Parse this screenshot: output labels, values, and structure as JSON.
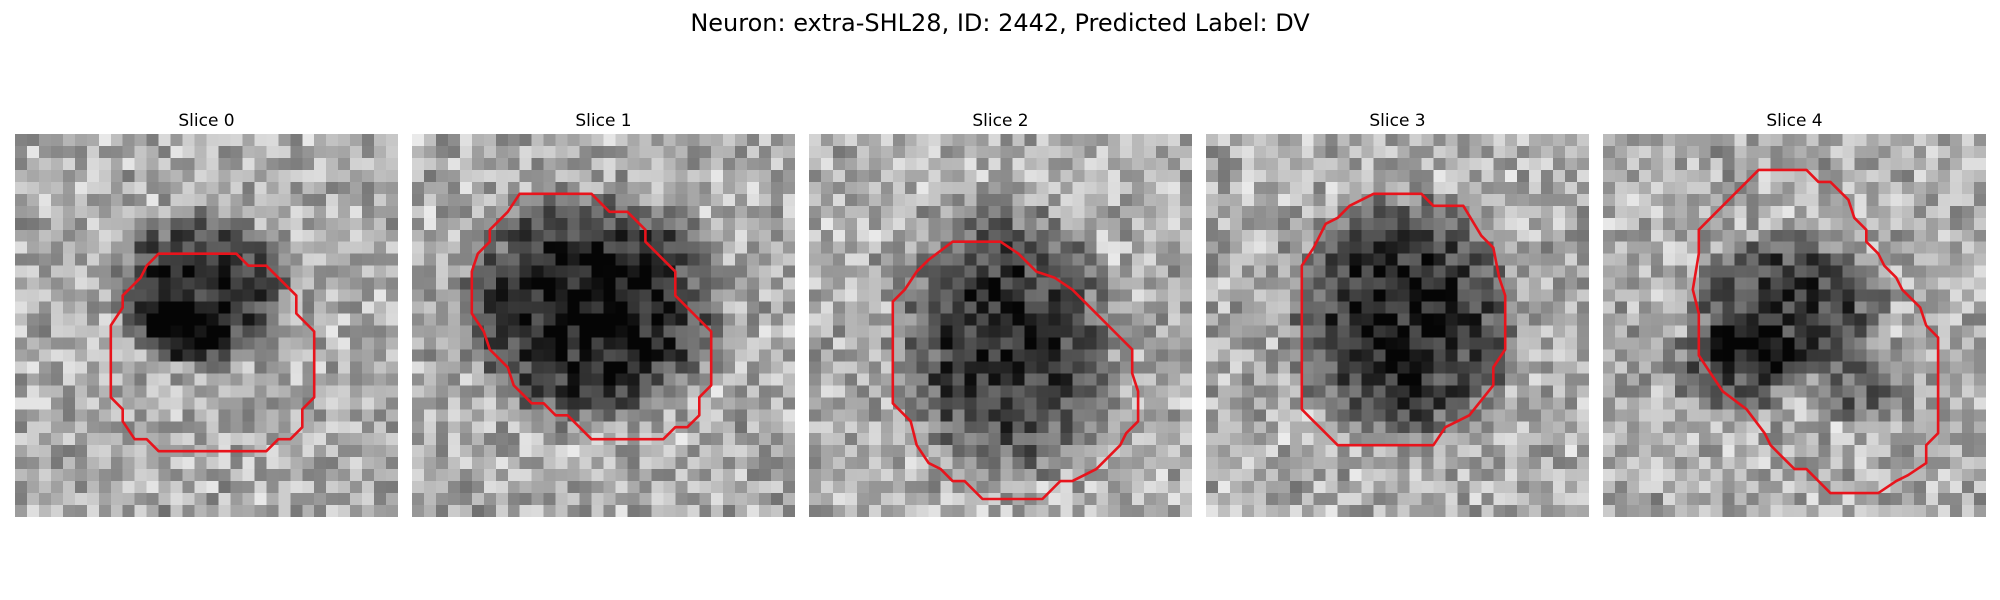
{
  "figure": {
    "title": "Neuron: extra-SHL28, ID: 2442, Predicted Label: DV"
  },
  "contour_color": "#e8141c",
  "colormap": "grayscale",
  "panels": [
    {
      "title": "Slice 0"
    },
    {
      "title": "Slice 1"
    },
    {
      "title": "Slice 2"
    },
    {
      "title": "Slice 3"
    },
    {
      "title": "Slice 4"
    }
  ]
}
